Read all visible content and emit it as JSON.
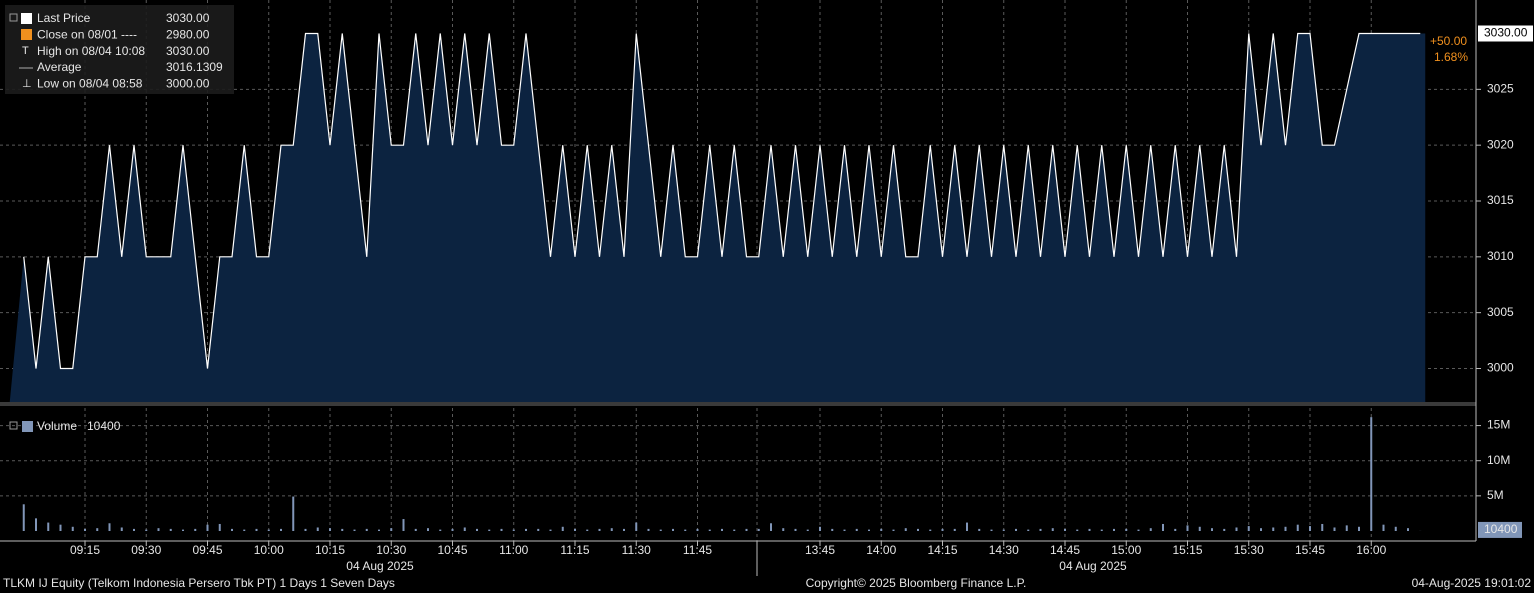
{
  "chart_data": {
    "type": "line",
    "legend": [
      {
        "label": "Last Price",
        "value": "3030.00"
      },
      {
        "label": "Close on 08/01 ----",
        "value": "2980.00"
      },
      {
        "label": "High on 08/04 10:08",
        "value": "3030.00"
      },
      {
        "label": "Average",
        "value": "3016.1309"
      },
      {
        "label": "Low on 08/04 08:58",
        "value": "3000.00"
      }
    ],
    "change": "+50.00",
    "change_pct": "1.68%",
    "categories": [
      null,
      null,
      null,
      null,
      null,
      "09:15",
      null,
      null,
      null,
      null,
      "09:30",
      null,
      null,
      null,
      null,
      "09:45",
      null,
      null,
      null,
      null,
      "10:00",
      null,
      null,
      null,
      null,
      "10:15",
      null,
      null,
      null,
      null,
      "10:30",
      null,
      null,
      null,
      null,
      "10:45",
      null,
      null,
      null,
      null,
      "11:00",
      null,
      null,
      null,
      null,
      "11:15",
      null,
      null,
      null,
      null,
      "11:30",
      null,
      null,
      null,
      null,
      "11:45",
      null,
      null,
      null,
      null,
      null,
      null,
      null,
      null,
      null,
      "13:45",
      null,
      null,
      null,
      null,
      "14:00",
      null,
      null,
      null,
      null,
      "14:15",
      null,
      null,
      null,
      null,
      "14:30",
      null,
      null,
      null,
      null,
      "14:45",
      null,
      null,
      null,
      null,
      "15:00",
      null,
      null,
      null,
      null,
      "15:15",
      null,
      null,
      null,
      null,
      "15:30",
      null,
      null,
      null,
      null,
      "15:45",
      null,
      null,
      null,
      null,
      "16:00",
      null,
      null,
      null,
      null
    ],
    "date_labels": [
      "04 Aug 2025",
      "04 Aug 2025"
    ],
    "series": [
      {
        "name": "Last Price",
        "color": "#ffffff",
        "fill": "#0c2340",
        "values": [
          3010,
          3000,
          3010,
          3000,
          3000,
          3010,
          3010,
          3020,
          3010,
          3020,
          3010,
          3010,
          3010,
          3020,
          3010,
          3000,
          3010,
          3010,
          3020,
          3010,
          3010,
          3020,
          3020,
          3030,
          3030,
          3020,
          3030,
          3020,
          3010,
          3030,
          3020,
          3020,
          3030,
          3020,
          3030,
          3020,
          3030,
          3020,
          3030,
          3020,
          3020,
          3030,
          3020,
          3010,
          3020,
          3010,
          3020,
          3010,
          3020,
          3010,
          3030,
          3020,
          3010,
          3020,
          3010,
          3010,
          3020,
          3010,
          3020,
          3010,
          3010,
          3020,
          3010,
          3020,
          3010,
          3020,
          3010,
          3020,
          3010,
          3020,
          3010,
          3020,
          3010,
          3010,
          3020,
          3010,
          3020,
          3010,
          3020,
          3010,
          3020,
          3010,
          3020,
          3010,
          3020,
          3010,
          3020,
          3010,
          3020,
          3010,
          3020,
          3010,
          3020,
          3010,
          3020,
          3010,
          3020,
          3010,
          3020,
          3010,
          3030,
          3020,
          3030,
          3020,
          3030,
          3030,
          3020,
          3020,
          3025,
          3030,
          3030,
          3030,
          3030,
          3030,
          3030
        ]
      }
    ],
    "ylim": [
      2997,
      3033
    ],
    "yticks": [
      3000,
      3005,
      3010,
      3015,
      3020,
      3025
    ],
    "volume": {
      "name": "Volume",
      "color": "#8196b8",
      "values": [
        3800000,
        1800000,
        1200000,
        900000,
        600000,
        300000,
        400000,
        1100000,
        500000,
        300000,
        200000,
        400000,
        300000,
        200000,
        300000,
        900000,
        1000000,
        300000,
        200000,
        300000,
        200000,
        300000,
        4900000,
        300000,
        500000,
        400000,
        300000,
        200000,
        300000,
        200000,
        400000,
        1700000,
        300000,
        400000,
        200000,
        300000,
        500000,
        300000,
        200000,
        300000,
        200000,
        300000,
        300000,
        200000,
        600000,
        300000,
        200000,
        300000,
        400000,
        300000,
        1200000,
        300000,
        200000,
        300000,
        200000,
        300000,
        200000,
        300000,
        200000,
        300000,
        300000,
        1100000,
        400000,
        300000,
        200000,
        600000,
        300000,
        200000,
        300000,
        200000,
        300000,
        200000,
        400000,
        300000,
        200000,
        300000,
        300000,
        1200000,
        300000,
        200000,
        200000,
        300000,
        200000,
        300000,
        400000,
        300000,
        200000,
        300000,
        200000,
        300000,
        300000,
        200000,
        400000,
        1000000,
        300000,
        800000,
        600000,
        400000,
        300000,
        500000,
        700000,
        400000,
        500000,
        600000,
        900000,
        700000,
        1000000,
        500000,
        800000,
        600000,
        16200000,
        900000,
        600000,
        400000,
        10400
      ]
    },
    "vlim": [
      0,
      17500000
    ],
    "vticks": [
      {
        "value": 5000000,
        "label": "5M"
      },
      {
        "value": 10000000,
        "label": "10M"
      },
      {
        "value": 15000000,
        "label": "15M"
      }
    ],
    "grid": true,
    "footer_left": "TLKM IJ Equity (Telkom Indonesia Persero Tbk PT) 1 Days 1 Seven Days",
    "footer_center": "Copyright© 2025 Bloomberg Finance L.P.",
    "footer_right": "04-Aug-2025 19:01:02"
  }
}
